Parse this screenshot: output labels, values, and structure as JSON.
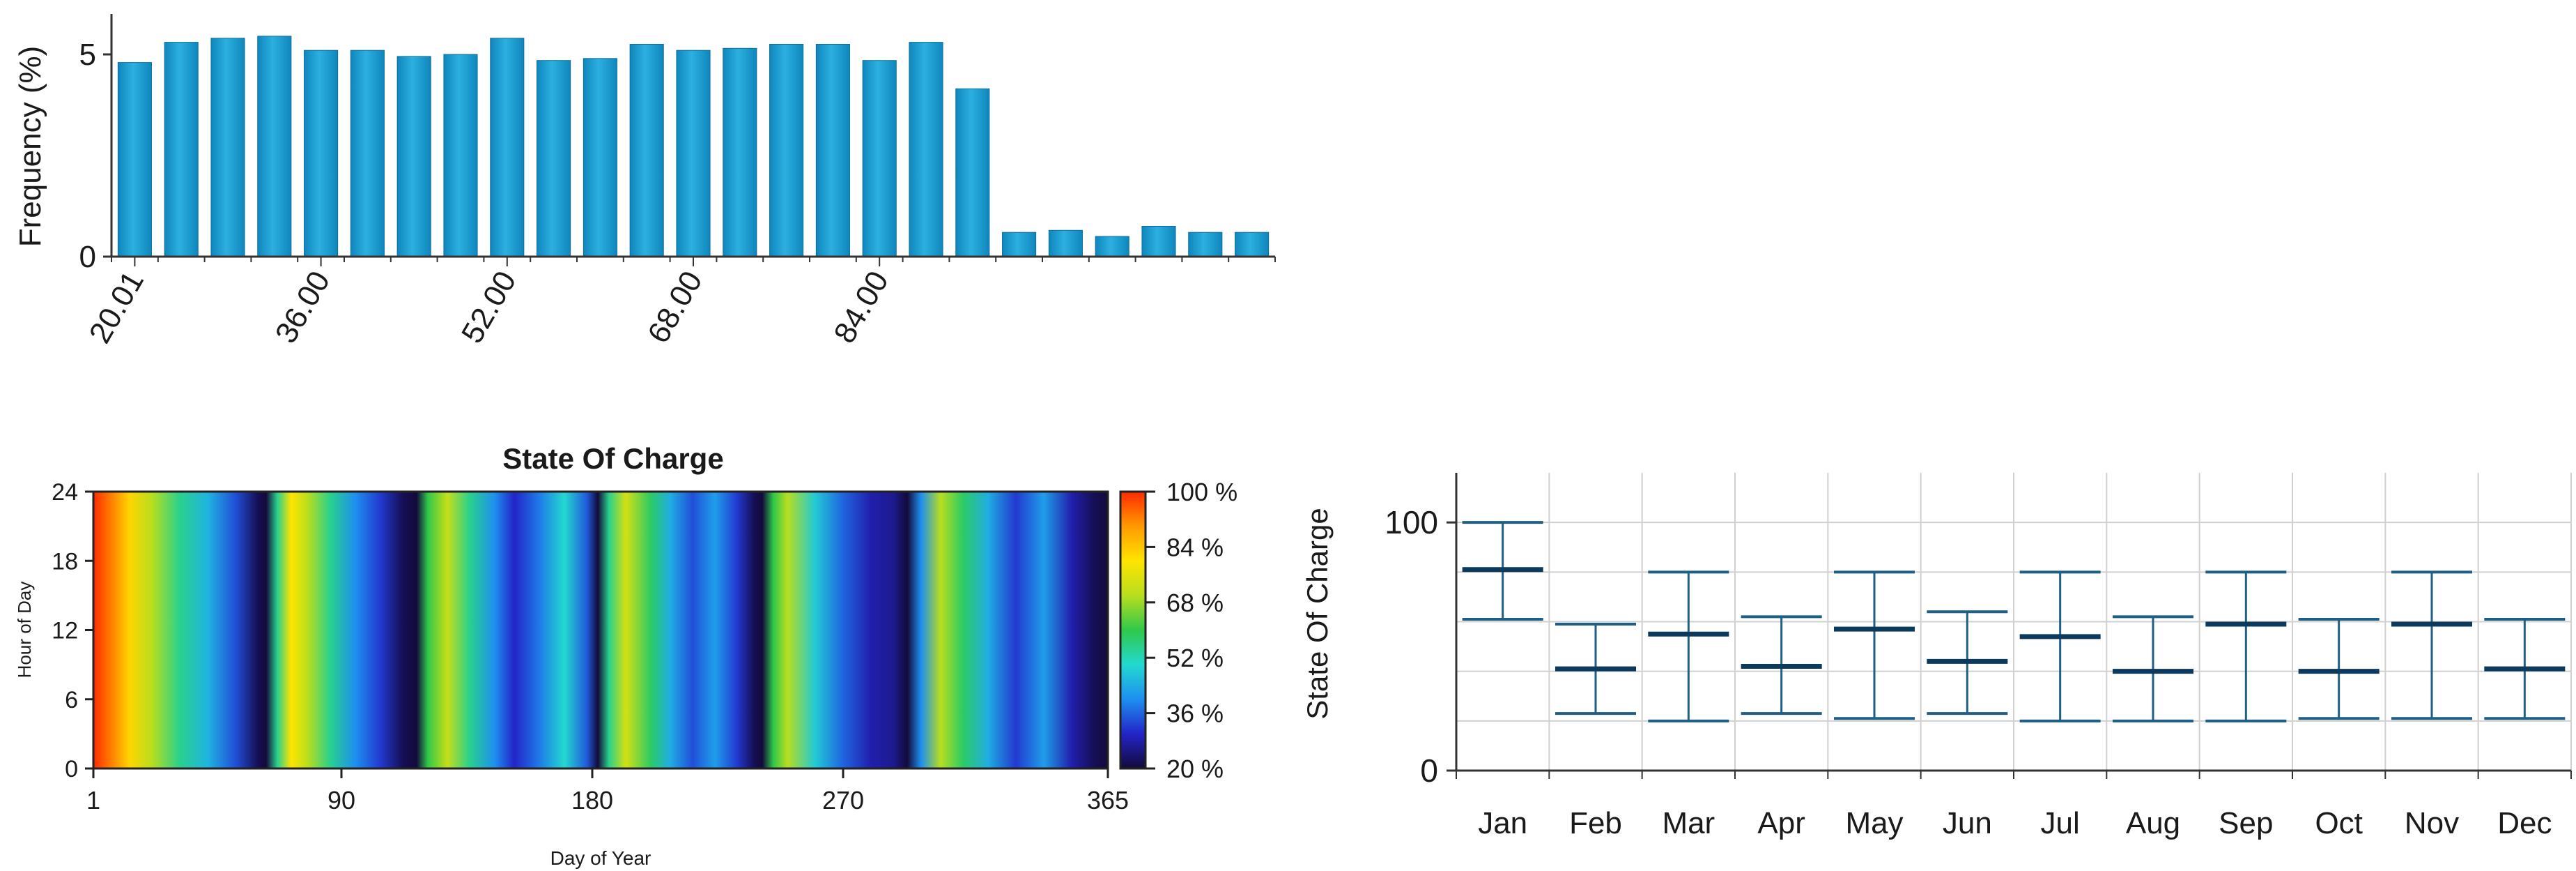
{
  "chart_data": [
    {
      "type": "bar",
      "title": "",
      "ylabel": "Frequency (%)",
      "xlabel": "",
      "ylim": [
        0,
        6
      ],
      "yticks": [
        "0",
        "5"
      ],
      "xtick_labels": [
        "20.01",
        "36.00",
        "52.00",
        "68.00",
        "84.00"
      ],
      "xtick_bins": [
        0,
        4,
        8,
        12,
        16
      ],
      "bar_color": "#169ad0",
      "values": [
        4.8,
        5.3,
        5.4,
        5.45,
        5.1,
        5.1,
        4.95,
        5.0,
        5.4,
        4.85,
        4.9,
        5.25,
        5.1,
        5.15,
        5.25,
        5.25,
        4.85,
        5.3,
        4.15,
        0.6,
        0.65,
        0.5,
        0.75,
        0.6,
        0.6
      ]
    },
    {
      "type": "heatmap",
      "title": "State Of Charge",
      "xlabel": "Day of Year",
      "ylabel": "Hour of Day",
      "xlim": [
        1,
        365
      ],
      "xticks": [
        1,
        90,
        180,
        270,
        365
      ],
      "ylim": [
        0,
        24
      ],
      "yticks": [
        0,
        6,
        12,
        18,
        24
      ],
      "colorbar_ticks": [
        "100 %",
        "84 %",
        "68 %",
        "52 %",
        "36 %",
        "20 %"
      ],
      "colorbar_range": [
        20,
        100
      ],
      "colormap": [
        "#130a3a",
        "#2324c8",
        "#1e8ff0",
        "#22d9d0",
        "#2fc84a",
        "#b8de1e",
        "#ffe400",
        "#ff9a00",
        "#ff2a00"
      ],
      "daily_soc": [
        [
          1,
          100
        ],
        [
          14,
          82
        ],
        [
          22,
          70
        ],
        [
          32,
          55
        ],
        [
          42,
          45
        ],
        [
          52,
          34
        ],
        [
          60,
          22
        ],
        [
          63,
          20
        ],
        [
          67,
          55
        ],
        [
          72,
          80
        ],
        [
          78,
          70
        ],
        [
          86,
          55
        ],
        [
          95,
          40
        ],
        [
          104,
          32
        ],
        [
          112,
          22
        ],
        [
          117,
          20
        ],
        [
          121,
          60
        ],
        [
          128,
          72
        ],
        [
          136,
          55
        ],
        [
          145,
          40
        ],
        [
          152,
          30
        ],
        [
          161,
          38
        ],
        [
          170,
          50
        ],
        [
          178,
          35
        ],
        [
          182,
          20
        ],
        [
          186,
          55
        ],
        [
          192,
          74
        ],
        [
          201,
          58
        ],
        [
          208,
          44
        ],
        [
          216,
          34
        ],
        [
          224,
          42
        ],
        [
          232,
          32
        ],
        [
          238,
          22
        ],
        [
          241,
          20
        ],
        [
          245,
          60
        ],
        [
          250,
          70
        ],
        [
          260,
          48
        ],
        [
          270,
          36
        ],
        [
          280,
          28
        ],
        [
          288,
          26
        ],
        [
          293,
          20
        ],
        [
          298,
          40
        ],
        [
          305,
          70
        ],
        [
          313,
          58
        ],
        [
          322,
          44
        ],
        [
          332,
          32
        ],
        [
          342,
          42
        ],
        [
          352,
          28
        ],
        [
          360,
          22
        ],
        [
          365,
          20
        ]
      ]
    },
    {
      "type": "box",
      "title": "",
      "xlabel": "",
      "ylabel": "State Of Charge",
      "ylim": [
        0,
        120
      ],
      "yticks": [
        "0",
        "100"
      ],
      "categories": [
        "Jan",
        "Feb",
        "Mar",
        "Apr",
        "May",
        "Jun",
        "Jul",
        "Aug",
        "Sep",
        "Oct",
        "Nov",
        "Dec"
      ],
      "min": [
        61,
        23,
        20,
        23,
        21,
        23,
        20,
        20,
        20,
        21,
        21,
        21
      ],
      "mean": [
        81,
        41,
        55,
        42,
        57,
        44,
        54,
        40,
        59,
        40,
        59,
        41
      ],
      "max": [
        100,
        59,
        80,
        62,
        80,
        64,
        80,
        62,
        80,
        61,
        80,
        61
      ],
      "color": "#1f5f86"
    }
  ]
}
